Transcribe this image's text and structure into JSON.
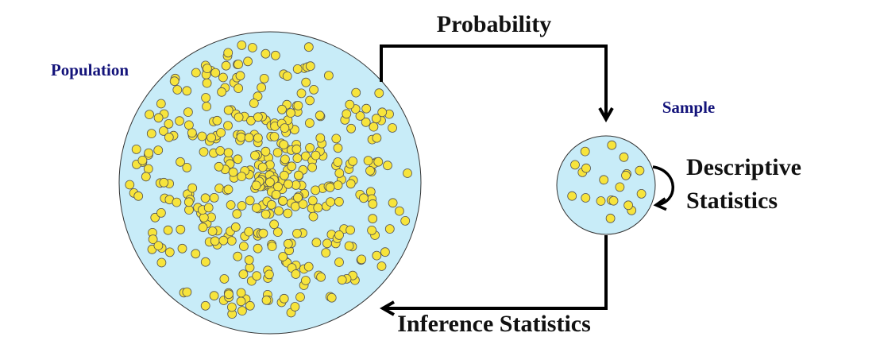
{
  "population": {
    "label": "Population"
  },
  "sample": {
    "label": "Sample"
  },
  "arrows": {
    "probability": "Probability",
    "inference": "Inference Statistics"
  },
  "descriptive": {
    "lines": [
      "Descriptive",
      "Statistics"
    ]
  }
}
